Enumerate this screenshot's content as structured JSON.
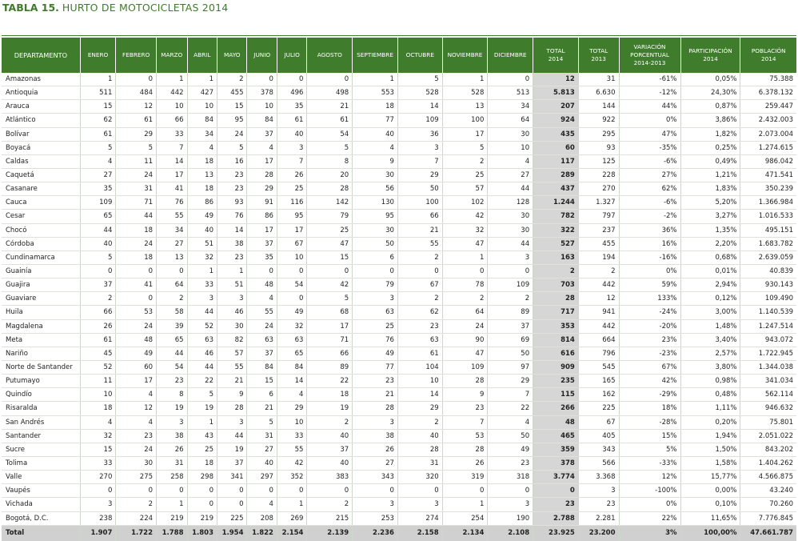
{
  "title": {
    "number": "TABLA 15.",
    "text": "HURTO DE MOTOCICLETAS 2014"
  },
  "headers": [
    "DEPARTAMENTO",
    "ENERO",
    "FEBRERO",
    "MARZO",
    "ABRIL",
    "MAYO",
    "JUNIO",
    "JULIO",
    "AGOSTO",
    "SEPTIEMBRE",
    "OCTUBRE",
    "NOVIEMBRE",
    "DICIEMBRE",
    "TOTAL\n2014",
    "TOTAL\n2013",
    "VARIACIÓN\nPORCENTUAL\n2014-2013",
    "PARTICIPACIÓN\n2014",
    "POBLACIÓN\n2014"
  ],
  "rows": [
    [
      "Amazonas",
      "1",
      "0",
      "1",
      "1",
      "2",
      "0",
      "0",
      "0",
      "1",
      "5",
      "1",
      "0",
      "12",
      "31",
      "-61%",
      "0,05%",
      "75.388"
    ],
    [
      "Antioquia",
      "511",
      "484",
      "442",
      "427",
      "455",
      "378",
      "496",
      "498",
      "553",
      "528",
      "528",
      "513",
      "5.813",
      "6.630",
      "-12%",
      "24,30%",
      "6.378.132"
    ],
    [
      "Arauca",
      "15",
      "12",
      "10",
      "10",
      "15",
      "10",
      "35",
      "21",
      "18",
      "14",
      "13",
      "34",
      "207",
      "144",
      "44%",
      "0,87%",
      "259.447"
    ],
    [
      "Atlántico",
      "62",
      "61",
      "66",
      "84",
      "95",
      "84",
      "61",
      "61",
      "77",
      "109",
      "100",
      "64",
      "924",
      "922",
      "0%",
      "3,86%",
      "2.432.003"
    ],
    [
      "Bolívar",
      "61",
      "29",
      "33",
      "34",
      "24",
      "37",
      "40",
      "54",
      "40",
      "36",
      "17",
      "30",
      "435",
      "295",
      "47%",
      "1,82%",
      "2.073.004"
    ],
    [
      "Boyacá",
      "5",
      "5",
      "7",
      "4",
      "5",
      "4",
      "3",
      "5",
      "4",
      "3",
      "5",
      "10",
      "60",
      "93",
      "-35%",
      "0,25%",
      "1.274.615"
    ],
    [
      "Caldas",
      "4",
      "11",
      "14",
      "18",
      "16",
      "17",
      "7",
      "8",
      "9",
      "7",
      "2",
      "4",
      "117",
      "125",
      "-6%",
      "0,49%",
      "986.042"
    ],
    [
      "Caquetá",
      "27",
      "24",
      "17",
      "13",
      "23",
      "28",
      "26",
      "20",
      "30",
      "29",
      "25",
      "27",
      "289",
      "228",
      "27%",
      "1,21%",
      "471.541"
    ],
    [
      "Casanare",
      "35",
      "31",
      "41",
      "18",
      "23",
      "29",
      "25",
      "28",
      "56",
      "50",
      "57",
      "44",
      "437",
      "270",
      "62%",
      "1,83%",
      "350.239"
    ],
    [
      "Cauca",
      "109",
      "71",
      "76",
      "86",
      "93",
      "91",
      "116",
      "142",
      "130",
      "100",
      "102",
      "128",
      "1.244",
      "1.327",
      "-6%",
      "5,20%",
      "1.366.984"
    ],
    [
      "Cesar",
      "65",
      "44",
      "55",
      "49",
      "76",
      "86",
      "95",
      "79",
      "95",
      "66",
      "42",
      "30",
      "782",
      "797",
      "-2%",
      "3,27%",
      "1.016.533"
    ],
    [
      "Chocó",
      "44",
      "18",
      "34",
      "40",
      "14",
      "17",
      "17",
      "25",
      "30",
      "21",
      "32",
      "30",
      "322",
      "237",
      "36%",
      "1,35%",
      "495.151"
    ],
    [
      "Córdoba",
      "40",
      "24",
      "27",
      "51",
      "38",
      "37",
      "67",
      "47",
      "50",
      "55",
      "47",
      "44",
      "527",
      "455",
      "16%",
      "2,20%",
      "1.683.782"
    ],
    [
      "Cundinamarca",
      "5",
      "18",
      "13",
      "32",
      "23",
      "35",
      "10",
      "15",
      "6",
      "2",
      "1",
      "3",
      "163",
      "194",
      "-16%",
      "0,68%",
      "2.639.059"
    ],
    [
      "Guainía",
      "0",
      "0",
      "0",
      "1",
      "1",
      "0",
      "0",
      "0",
      "0",
      "0",
      "0",
      "0",
      "2",
      "2",
      "0%",
      "0,01%",
      "40.839"
    ],
    [
      "Guajira",
      "37",
      "41",
      "64",
      "33",
      "51",
      "48",
      "54",
      "42",
      "79",
      "67",
      "78",
      "109",
      "703",
      "442",
      "59%",
      "2,94%",
      "930.143"
    ],
    [
      "Guaviare",
      "2",
      "0",
      "2",
      "3",
      "3",
      "4",
      "0",
      "5",
      "3",
      "2",
      "2",
      "2",
      "28",
      "12",
      "133%",
      "0,12%",
      "109.490"
    ],
    [
      "Huila",
      "66",
      "53",
      "58",
      "44",
      "46",
      "55",
      "49",
      "68",
      "63",
      "62",
      "64",
      "89",
      "717",
      "941",
      "-24%",
      "3,00%",
      "1.140.539"
    ],
    [
      "Magdalena",
      "26",
      "24",
      "39",
      "52",
      "30",
      "24",
      "32",
      "17",
      "25",
      "23",
      "24",
      "37",
      "353",
      "442",
      "-20%",
      "1,48%",
      "1.247.514"
    ],
    [
      "Meta",
      "61",
      "48",
      "65",
      "63",
      "82",
      "63",
      "63",
      "71",
      "76",
      "63",
      "90",
      "69",
      "814",
      "664",
      "23%",
      "3,40%",
      "943.072"
    ],
    [
      "Nariño",
      "45",
      "49",
      "44",
      "46",
      "57",
      "37",
      "65",
      "66",
      "49",
      "61",
      "47",
      "50",
      "616",
      "796",
      "-23%",
      "2,57%",
      "1.722.945"
    ],
    [
      "Norte de Santander",
      "52",
      "60",
      "54",
      "44",
      "55",
      "84",
      "84",
      "89",
      "77",
      "104",
      "109",
      "97",
      "909",
      "545",
      "67%",
      "3,80%",
      "1.344.038"
    ],
    [
      "Putumayo",
      "11",
      "17",
      "23",
      "22",
      "21",
      "15",
      "14",
      "22",
      "23",
      "10",
      "28",
      "29",
      "235",
      "165",
      "42%",
      "0,98%",
      "341.034"
    ],
    [
      "Quindío",
      "10",
      "4",
      "8",
      "5",
      "9",
      "6",
      "4",
      "18",
      "21",
      "14",
      "9",
      "7",
      "115",
      "162",
      "-29%",
      "0,48%",
      "562.114"
    ],
    [
      "Risaralda",
      "18",
      "12",
      "19",
      "19",
      "28",
      "21",
      "29",
      "19",
      "28",
      "29",
      "23",
      "22",
      "266",
      "225",
      "18%",
      "1,11%",
      "946.632"
    ],
    [
      "San Andrés",
      "4",
      "4",
      "3",
      "1",
      "3",
      "5",
      "10",
      "2",
      "3",
      "2",
      "7",
      "4",
      "48",
      "67",
      "-28%",
      "0,20%",
      "75.801"
    ],
    [
      "Santander",
      "32",
      "23",
      "38",
      "43",
      "44",
      "31",
      "33",
      "40",
      "38",
      "40",
      "53",
      "50",
      "465",
      "405",
      "15%",
      "1,94%",
      "2.051.022"
    ],
    [
      "Sucre",
      "15",
      "24",
      "26",
      "25",
      "19",
      "27",
      "55",
      "37",
      "26",
      "28",
      "28",
      "49",
      "359",
      "343",
      "5%",
      "1,50%",
      "843.202"
    ],
    [
      "Tolima",
      "33",
      "30",
      "31",
      "18",
      "37",
      "40",
      "42",
      "40",
      "27",
      "31",
      "26",
      "23",
      "378",
      "566",
      "-33%",
      "1,58%",
      "1.404.262"
    ],
    [
      "Valle",
      "270",
      "275",
      "258",
      "298",
      "341",
      "297",
      "352",
      "383",
      "343",
      "320",
      "319",
      "318",
      "3.774",
      "3.368",
      "12%",
      "15,77%",
      "4.566.875"
    ],
    [
      "Vaupés",
      "0",
      "0",
      "0",
      "0",
      "0",
      "0",
      "0",
      "0",
      "0",
      "0",
      "0",
      "0",
      "0",
      "3",
      "-100%",
      "0,00%",
      "43.240"
    ],
    [
      "Vichada",
      "3",
      "2",
      "1",
      "0",
      "0",
      "4",
      "1",
      "2",
      "3",
      "3",
      "1",
      "3",
      "23",
      "23",
      "0%",
      "0,10%",
      "70.260"
    ],
    [
      "Bogotá, D.C.",
      "238",
      "224",
      "219",
      "219",
      "225",
      "208",
      "269",
      "215",
      "253",
      "274",
      "254",
      "190",
      "2.788",
      "2.281",
      "22%",
      "11,65%",
      "7.776.845"
    ]
  ],
  "total": [
    "Total",
    "1.907",
    "1.722",
    "1.788",
    "1.803",
    "1.954",
    "1.822",
    "2.154",
    "2.139",
    "2.236",
    "2.158",
    "2.134",
    "2.108",
    "23.925",
    "23.200",
    "3%",
    "100,00%",
    "47.661.787"
  ]
}
